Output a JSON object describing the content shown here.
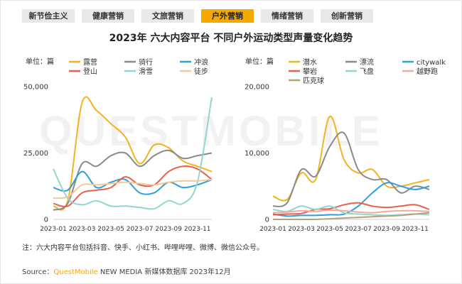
{
  "tabs": [
    {
      "label": "新节俭主义",
      "active": false
    },
    {
      "label": "健康营销",
      "active": false
    },
    {
      "label": "文旅营销",
      "active": false
    },
    {
      "label": "户外营销",
      "active": true
    },
    {
      "label": "情绪营销",
      "active": false
    },
    {
      "label": "创新营销",
      "active": false
    }
  ],
  "title": "2023年 六大内容平台 不同户外运动类型声量变化趋势",
  "unit_label": "单位：篇",
  "note": "注：六大内容平台包括抖音、快手、小红书、哔哩哔哩、微博、微信公众号。",
  "source": {
    "prefix": "Source：",
    "brand": "QuestMobile",
    "suffix": " NEW MEDIA 新媒体数据库 2023年12月"
  },
  "watermark": "QUESTMOBILE",
  "chart_data": [
    {
      "type": "line",
      "ylim": [
        0,
        50000
      ],
      "yticks": [
        0,
        25000,
        50000
      ],
      "ytick_labels": [
        "0",
        "25,000",
        "50,000"
      ],
      "x": [
        "2023-01",
        "2023-02",
        "2023-03",
        "2023-04",
        "2023-05",
        "2023-06",
        "2023-07",
        "2023-08",
        "2023-09",
        "2023-10",
        "2023-11",
        "2023-12"
      ],
      "xtick_labels": [
        "2023-01",
        "2023-03",
        "2023-05",
        "2023-07",
        "2023-09",
        "2023-11"
      ],
      "legend_position": "top",
      "series": [
        {
          "name": "露营",
          "color": "#f5b21d",
          "values": [
            5000,
            7000,
            44000,
            41000,
            36000,
            31000,
            21000,
            28000,
            27000,
            22000,
            20000,
            18000
          ]
        },
        {
          "name": "骑行",
          "color": "#8a8a8a",
          "values": [
            3500,
            6000,
            21000,
            20000,
            24000,
            25000,
            20000,
            24000,
            26000,
            23000,
            24000,
            25000
          ]
        },
        {
          "name": "冲浪",
          "color": "#2d9fd9",
          "values": [
            12000,
            11000,
            18000,
            12000,
            14000,
            15000,
            10000,
            10000,
            14000,
            12000,
            13000,
            15000
          ]
        },
        {
          "name": "登山",
          "color": "#e8604c",
          "values": [
            6000,
            5000,
            10000,
            11000,
            12000,
            16000,
            13000,
            13000,
            18000,
            20000,
            19000,
            15000
          ]
        },
        {
          "name": "滑雪",
          "color": "#8fd8d0",
          "values": [
            19000,
            8000,
            5500,
            7000,
            5000,
            5000,
            4500,
            4000,
            7000,
            6000,
            14000,
            46000
          ]
        },
        {
          "name": "徒步",
          "color": "#f2c89a",
          "values": [
            8000,
            8500,
            13000,
            13000,
            13500,
            14000,
            13500,
            13000,
            14000,
            14500,
            14500,
            15000
          ]
        }
      ]
    },
    {
      "type": "line",
      "ylim": [
        0,
        20000
      ],
      "yticks": [
        0,
        10000,
        20000
      ],
      "ytick_labels": [
        "0",
        "10,000",
        "20,000"
      ],
      "x": [
        "2023-01",
        "2023-02",
        "2023-03",
        "2023-04",
        "2023-05",
        "2023-06",
        "2023-07",
        "2023-08",
        "2023-09",
        "2023-10",
        "2023-11",
        "2023-12"
      ],
      "xtick_labels": [
        "2023-01",
        "2023-03",
        "2023-05",
        "2023-07",
        "2023-09",
        "2023-11"
      ],
      "legend_position": "top",
      "series": [
        {
          "name": "潜水",
          "color": "#f5b21d",
          "values": [
            3500,
            3000,
            7000,
            6000,
            15500,
            9000,
            7000,
            7500,
            5000,
            5000,
            5500,
            6000
          ]
        },
        {
          "name": "漂流",
          "color": "#8a8a8a",
          "values": [
            2000,
            2500,
            7500,
            6500,
            11000,
            13000,
            7500,
            6000,
            6000,
            4000,
            5000,
            4500
          ]
        },
        {
          "name": "citywalk",
          "color": "#2d9fd9",
          "values": [
            800,
            500,
            600,
            600,
            700,
            800,
            2000,
            4000,
            5500,
            5000,
            4500,
            5000
          ]
        },
        {
          "name": "攀岩",
          "color": "#e8604c",
          "values": [
            700,
            800,
            900,
            1500,
            1600,
            2200,
            2500,
            2000,
            1800,
            2000,
            2200,
            1500
          ]
        },
        {
          "name": "飞盘",
          "color": "#8fd8d0",
          "values": [
            1500,
            1200,
            2000,
            1500,
            2000,
            1000,
            800,
            700,
            600,
            700,
            800,
            700
          ]
        },
        {
          "name": "越野跑",
          "color": "#f2a99e",
          "values": [
            1000,
            1100,
            1300,
            1200,
            1400,
            1300,
            1100,
            1000,
            1200,
            1300,
            1300,
            1200
          ]
        },
        {
          "name": "匹克球",
          "color": "#b5a27a",
          "values": [
            0,
            0,
            0,
            0,
            100,
            200,
            300,
            400,
            500,
            600,
            800,
            1000
          ]
        }
      ]
    }
  ]
}
